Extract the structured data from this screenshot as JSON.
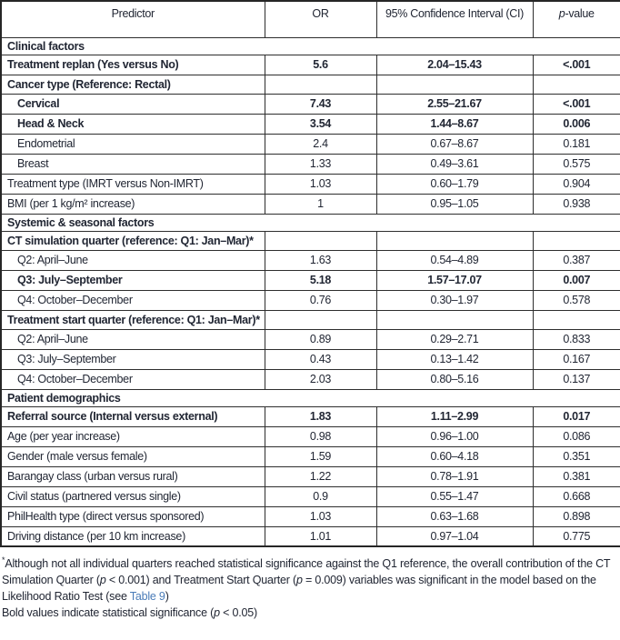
{
  "table": {
    "header": {
      "predictor": "Predictor",
      "or": "OR",
      "ci": "95% Confidence Interval (CI)",
      "p_segments": [
        {
          "t": "p",
          "i": true
        },
        {
          "t": "-value"
        }
      ]
    },
    "rows": [
      {
        "type": "section",
        "predictor": "Clinical factors"
      },
      {
        "type": "data",
        "predictor": "Treatment replan (Yes versus No)",
        "or": "5.6",
        "ci": "2.04–15.43",
        "p": "<.001",
        "bold": true
      },
      {
        "type": "parent",
        "predictor": "Cancer type (Reference: Rectal)",
        "or": "",
        "ci": "",
        "p": ""
      },
      {
        "type": "data",
        "indent": true,
        "predictor": "Cervical",
        "or": "7.43",
        "ci": "2.55–21.67",
        "p": "<.001",
        "bold": true
      },
      {
        "type": "data",
        "indent": true,
        "predictor": "Head & Neck",
        "or": "3.54",
        "ci": "1.44–8.67",
        "p": "0.006",
        "bold": true
      },
      {
        "type": "data",
        "indent": true,
        "predictor": "Endometrial",
        "or": "2.4",
        "ci": "0.67–8.67",
        "p": "0.181"
      },
      {
        "type": "data",
        "indent": true,
        "predictor": "Breast",
        "or": "1.33",
        "ci": "0.49–3.61",
        "p": "0.575"
      },
      {
        "type": "data",
        "predictor": "Treatment type (IMRT versus Non-IMRT)",
        "or": "1.03",
        "ci": "0.60–1.79",
        "p": "0.904"
      },
      {
        "type": "data",
        "predictor": "BMI (per 1 kg/m² increase)",
        "or": "1",
        "ci": "0.95–1.05",
        "p": "0.938"
      },
      {
        "type": "section",
        "predictor": "Systemic & seasonal factors"
      },
      {
        "type": "parent",
        "predictor": "CT simulation quarter (reference: Q1: Jan–Mar)*",
        "or": "",
        "ci": "",
        "p": ""
      },
      {
        "type": "data",
        "indent": true,
        "predictor": "Q2: April–June",
        "or": "1.63",
        "ci": "0.54–4.89",
        "p": "0.387"
      },
      {
        "type": "data",
        "indent": true,
        "predictor": "Q3: July–September",
        "or": "5.18",
        "ci": "1.57–17.07",
        "p": "0.007",
        "bold": true
      },
      {
        "type": "data",
        "indent": true,
        "predictor": "Q4: October–December",
        "or": "0.76",
        "ci": "0.30–1.97",
        "p": "0.578"
      },
      {
        "type": "parent",
        "predictor": "Treatment start quarter (reference: Q1: Jan–Mar)*",
        "or": "",
        "ci": "",
        "p": ""
      },
      {
        "type": "data",
        "indent": true,
        "predictor": "Q2: April–June",
        "or": "0.89",
        "ci": "0.29–2.71",
        "p": "0.833"
      },
      {
        "type": "data",
        "indent": true,
        "predictor": "Q3: July–September",
        "or": "0.43",
        "ci": "0.13–1.42",
        "p": "0.167"
      },
      {
        "type": "data",
        "indent": true,
        "predictor": "Q4: October–December",
        "or": "2.03",
        "ci": "0.80–5.16",
        "p": "0.137"
      },
      {
        "type": "section",
        "predictor": "Patient demographics"
      },
      {
        "type": "data",
        "predictor": "Referral source (Internal versus external)",
        "or": "1.83",
        "ci": "1.11–2.99",
        "p": "0.017",
        "bold": true
      },
      {
        "type": "data",
        "predictor": "Age (per year increase)",
        "or": "0.98",
        "ci": "0.96–1.00",
        "p": "0.086"
      },
      {
        "type": "data",
        "predictor": "Gender (male versus female)",
        "or": "1.59",
        "ci": "0.60–4.18",
        "p": "0.351"
      },
      {
        "type": "data",
        "predictor": "Barangay class (urban versus rural)",
        "or": "1.22",
        "ci": "0.78–1.91",
        "p": "0.381"
      },
      {
        "type": "data",
        "predictor": "Civil status (partnered versus single)",
        "or": "0.9",
        "ci": "0.55–1.47",
        "p": "0.668"
      },
      {
        "type": "data",
        "predictor": "PhilHealth type (direct versus sponsored)",
        "or": "1.03",
        "ci": "0.63–1.68",
        "p": "0.898"
      },
      {
        "type": "data",
        "predictor": "Driving distance (per 10 km increase)",
        "or": "1.01",
        "ci": "0.97–1.04",
        "p": "0.775"
      }
    ]
  },
  "footnotes": [
    {
      "segments": [
        {
          "t": "*",
          "sup": true
        },
        {
          "t": "Although not all individual quarters reached statistical significance against the Q1 reference, the overall contribution of the CT Simulation Quarter ("
        },
        {
          "t": "p",
          "i": true
        },
        {
          "t": " < 0.001) and Treatment Start Quarter ("
        },
        {
          "t": "p",
          "i": true
        },
        {
          "t": " = 0.009) variables was significant in the model based on the Likelihood Ratio Test (see "
        },
        {
          "t": "Table 9",
          "link": true
        },
        {
          "t": ")"
        }
      ]
    },
    {
      "segments": [
        {
          "t": "Bold values indicate statistical significance ("
        },
        {
          "t": "p",
          "i": true
        },
        {
          "t": " < 0.05)"
        }
      ]
    }
  ],
  "colors": {
    "text": "#212633",
    "border": "#2e2e2e",
    "outer_border": "#262626",
    "link": "#4a7cb8",
    "background": "#ffffff"
  }
}
